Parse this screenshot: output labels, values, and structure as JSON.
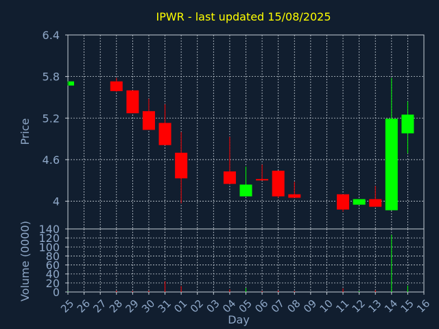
{
  "chart_data": {
    "type": "candlestick",
    "title": "IPWR - last updated 15/08/2025",
    "xlabel": "Day",
    "ylabel": "Price",
    "volume_ylabel": "Volume (0000)",
    "ylim": [
      3.6,
      6.4
    ],
    "yticks": [
      "6.4",
      "5.8",
      "5.2",
      "4.6",
      "4"
    ],
    "ytick_values": [
      6.4,
      5.8,
      5.2,
      4.6,
      4.0
    ],
    "volume_ylim": [
      0,
      140
    ],
    "volume_yticks": [
      "140",
      "120",
      "100",
      "80",
      "60",
      "40",
      "20",
      "0"
    ],
    "volume_ytick_values": [
      140,
      120,
      100,
      80,
      60,
      40,
      20,
      0
    ],
    "categories": [
      "25",
      "26",
      "27",
      "28",
      "29",
      "30",
      "31",
      "01",
      "02",
      "03",
      "04",
      "05",
      "06",
      "07",
      "08",
      "09",
      "10",
      "11",
      "12",
      "13",
      "14",
      "15",
      "16"
    ],
    "grid": true,
    "colors": {
      "background": "#111e2f",
      "up": "#00ff00",
      "down": "#ff0000",
      "title": "#ffff00",
      "axis_text": "#8fa8c8",
      "grid": "#c8d0d8"
    },
    "candles": [
      {
        "day": "25",
        "open": 5.67,
        "high": 5.73,
        "low": 5.67,
        "close": 5.73
      },
      {
        "day": "28",
        "open": 5.73,
        "high": 5.78,
        "low": 5.58,
        "close": 5.59
      },
      {
        "day": "29",
        "open": 5.6,
        "high": 5.6,
        "low": 5.27,
        "close": 5.27
      },
      {
        "day": "30",
        "open": 5.3,
        "high": 5.48,
        "low": 5.03,
        "close": 5.03
      },
      {
        "day": "31",
        "open": 5.13,
        "high": 5.4,
        "low": 4.81,
        "close": 4.81
      },
      {
        "day": "01",
        "open": 4.7,
        "high": 5.0,
        "low": 3.97,
        "close": 4.33
      },
      {
        "day": "04",
        "open": 4.43,
        "high": 4.93,
        "low": 4.25,
        "close": 4.25
      },
      {
        "day": "05",
        "open": 4.07,
        "high": 4.5,
        "low": 4.07,
        "close": 4.24
      },
      {
        "day": "06",
        "open": 4.32,
        "high": 4.53,
        "low": 4.3,
        "close": 4.3
      },
      {
        "day": "07",
        "open": 4.44,
        "high": 4.44,
        "low": 4.05,
        "close": 4.07
      },
      {
        "day": "08",
        "open": 4.1,
        "high": 4.28,
        "low": 4.05,
        "close": 4.05
      },
      {
        "day": "11",
        "open": 4.1,
        "high": 4.1,
        "low": 3.85,
        "close": 3.88
      },
      {
        "day": "12",
        "open": 3.95,
        "high": 4.03,
        "low": 3.95,
        "close": 4.03
      },
      {
        "day": "13",
        "open": 4.03,
        "high": 4.22,
        "low": 3.92,
        "close": 3.92
      },
      {
        "day": "14",
        "open": 3.87,
        "high": 5.78,
        "low": 3.87,
        "close": 5.19
      },
      {
        "day": "15",
        "open": 4.98,
        "high": 5.44,
        "low": 4.69,
        "close": 5.25
      }
    ],
    "volume": [
      {
        "day": "25",
        "value": 1,
        "up": true
      },
      {
        "day": "28",
        "value": 3,
        "up": false
      },
      {
        "day": "29",
        "value": 2,
        "up": false
      },
      {
        "day": "30",
        "value": 3,
        "up": false
      },
      {
        "day": "31",
        "value": 24,
        "up": false
      },
      {
        "day": "01",
        "value": 13,
        "up": false
      },
      {
        "day": "04",
        "value": 6,
        "up": false
      },
      {
        "day": "05",
        "value": 9,
        "up": true
      },
      {
        "day": "06",
        "value": 2,
        "up": false
      },
      {
        "day": "07",
        "value": 3,
        "up": false
      },
      {
        "day": "08",
        "value": 2,
        "up": false
      },
      {
        "day": "11",
        "value": 8,
        "up": false
      },
      {
        "day": "12",
        "value": 2,
        "up": true
      },
      {
        "day": "13",
        "value": 4,
        "up": false
      },
      {
        "day": "14",
        "value": 127,
        "up": true
      },
      {
        "day": "15",
        "value": 14,
        "up": true
      }
    ]
  }
}
